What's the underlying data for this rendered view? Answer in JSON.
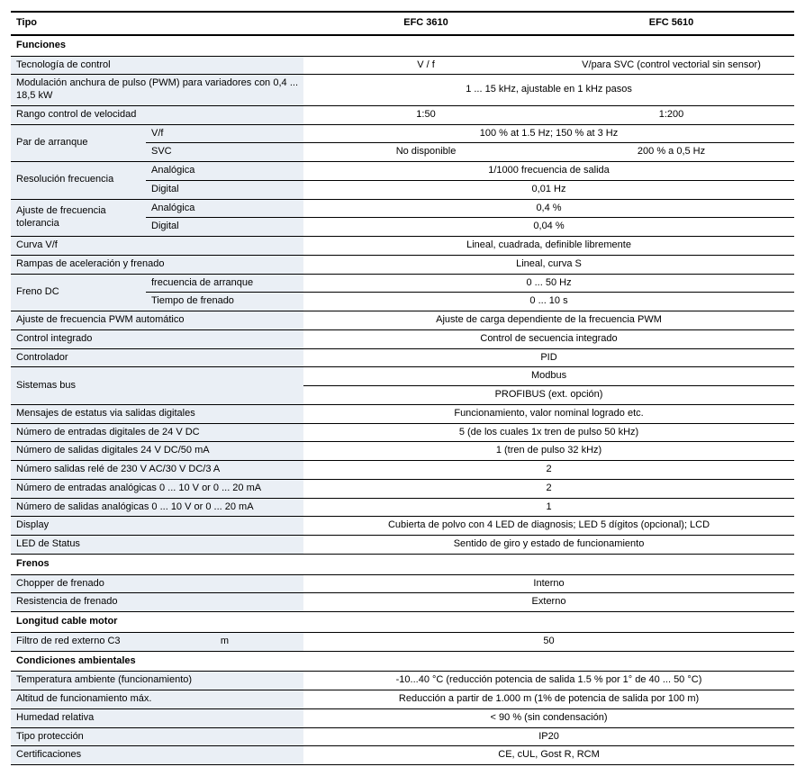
{
  "header": {
    "tipo": "Tipo",
    "model1": "EFC 3610",
    "model2": "EFC 5610"
  },
  "sections": {
    "funciones": "Funciones",
    "frenos": "Frenos",
    "longitud": "Longitud cable motor",
    "condiciones": "Condiciones ambientales"
  },
  "rows": {
    "tec_ctrl": {
      "label": "Tecnología de control",
      "v1": "V / f",
      "v2": "V/para SVC (control vectorial sin sensor)"
    },
    "pwm_mod": {
      "label": "Modulación anchura de pulso (PWM) para variadores con 0,4 ... 18,5 kW",
      "value": "1 ... 15 kHz, ajustable en 1 kHz pasos"
    },
    "rango_vel": {
      "label": "Rango control de velocidad",
      "v1": "1:50",
      "v2": "1:200"
    },
    "par_arr": {
      "label": "Par de arranque",
      "sub_vf": "V/f",
      "sub_svc": "SVC",
      "vf_value": "100 % at 1.5 Hz; 150 % at 3 Hz",
      "svc_v1": "No disponible",
      "svc_v2": "200 % a 0,5 Hz"
    },
    "res_freq": {
      "label": "Resolución frecuencia",
      "sub_ana": "Analógica",
      "sub_dig": "Digital",
      "ana_value": "1/1000 frecuencia de salida",
      "dig_value": "0,01 Hz"
    },
    "ajuste_tol": {
      "label": "Ajuste de frecuencia tolerancia",
      "sub_ana": "Analógica",
      "sub_dig": "Digital",
      "ana_value": "0,4 %",
      "dig_value": "0,04 %"
    },
    "curva_vf": {
      "label": "Curva V/f",
      "value": "Lineal, cuadrada, definible libremente"
    },
    "rampas": {
      "label": "Rampas de aceleración y frenado",
      "value": "Lineal, curva  S"
    },
    "freno_dc": {
      "label": "Freno DC",
      "sub_freq": "frecuencia de arranque",
      "sub_tiempo": "Tiempo de frenado",
      "freq_value": "0 ... 50 Hz",
      "tiempo_value": "0 ... 10 s"
    },
    "ajuste_pwm": {
      "label": "Ajuste de frecuencia PWM automático",
      "value": "Ajuste de carga dependiente de la frecuencia PWM"
    },
    "ctrl_int": {
      "label": "Control integrado",
      "value": "Control de secuencia integrado"
    },
    "controlador": {
      "label": "Controlador",
      "value": "PID"
    },
    "sistemas_bus": {
      "label": "Sistemas bus",
      "v1": "Modbus",
      "v2": "PROFIBUS (ext. opción)"
    },
    "mensajes": {
      "label": "Mensajes de  estatus via salidas digitales",
      "value": "Funcionamiento, valor nominal logrado etc."
    },
    "num_ent_dig": {
      "label": "Número de entradas digitales de 24 V DC",
      "value": "5 (de los cuales 1x tren de pulso 50 kHz)"
    },
    "num_sal_dig": {
      "label": "Número de salidas digitales 24 V DC/50 mA",
      "value": "1 (tren de pulso 32 kHz)"
    },
    "num_sal_rele": {
      "label": "Número salidas relé de 230 V AC/30 V DC/3 A",
      "value": "2"
    },
    "num_ent_ana": {
      "label": "Número de entradas analógicas 0 ... 10 V or 0 ... 20 mA",
      "value": "2"
    },
    "num_sal_ana": {
      "label": "Número de salidas analógicas 0 ... 10 V or 0 ... 20 mA",
      "value": "1"
    },
    "display": {
      "label": "Display",
      "value": "Cubierta de polvo con  4 LED de diagnosis; LED 5 dígitos (opcional); LCD"
    },
    "led_status": {
      "label": "LED de Status",
      "value": "Sentido de giro y estado de  funcionamiento"
    },
    "chopper": {
      "label": "Chopper de frenado",
      "value": "Interno"
    },
    "resistencia": {
      "label": "Resistencia de frenado",
      "value": "Externo"
    },
    "filtro_c3": {
      "label": "Filtro de red externo C3",
      "unit": "m",
      "value": "50"
    },
    "temp_amb": {
      "label": "Temperatura ambiente (funcionamiento)",
      "value": "-10...40 °C (reducción potencia de salida 1.5 % por 1° de 40 ... 50 °C)"
    },
    "altitud": {
      "label": "Altitud de funcionamiento máx.",
      "value": "Reducción a partir de 1.000 m (1%  de potencia de salida por 100 m)"
    },
    "humedad": {
      "label": "Humedad relativa",
      "value": "< 90 % (sin  condensación)"
    },
    "tipo_prot": {
      "label": "Tipo protección",
      "value": "IP20"
    },
    "cert": {
      "label": "Certificaciones",
      "value": "CE, cUL, Gost R, RCM"
    }
  }
}
